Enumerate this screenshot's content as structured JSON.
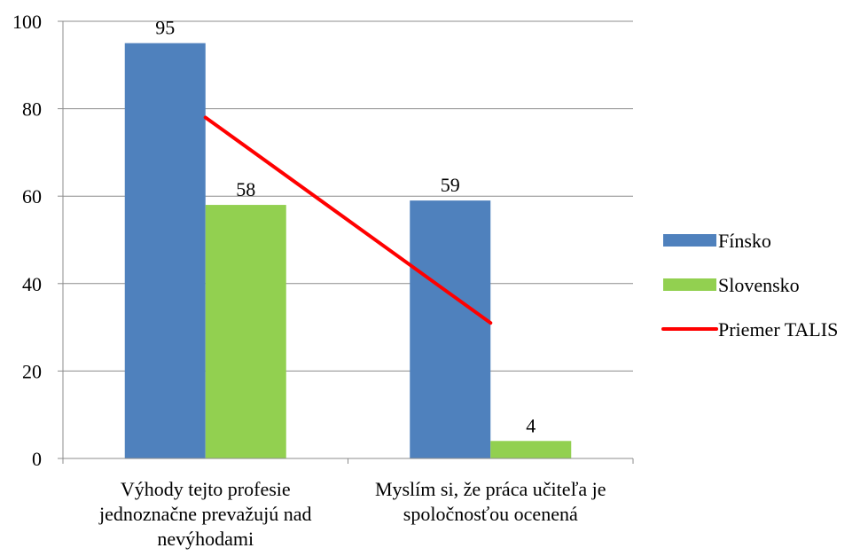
{
  "chart_data": {
    "type": "bar",
    "categories": [
      [
        "Výhody tejto profesie",
        "jednoznačne prevažujú nad",
        "nevýhodami"
      ],
      [
        "Myslím si, že práca učiteľa je",
        "spoločnosťou ocenená"
      ]
    ],
    "series": [
      {
        "name": "Fínsko",
        "type": "bar",
        "values": [
          95,
          59
        ],
        "data_labels": [
          "95",
          "59"
        ],
        "color": "#4f81bd"
      },
      {
        "name": "Slovensko",
        "type": "bar",
        "values": [
          58,
          4
        ],
        "data_labels": [
          "58",
          "4"
        ],
        "color": "#92d050"
      },
      {
        "name": "Priemer TALIS",
        "type": "line",
        "values": [
          78,
          31
        ],
        "color": "#ff0000"
      }
    ],
    "y_ticks": [
      "0",
      "20",
      "40",
      "60",
      "80",
      "100"
    ],
    "ylim": [
      0,
      100
    ],
    "grid": true,
    "legend": "right"
  }
}
